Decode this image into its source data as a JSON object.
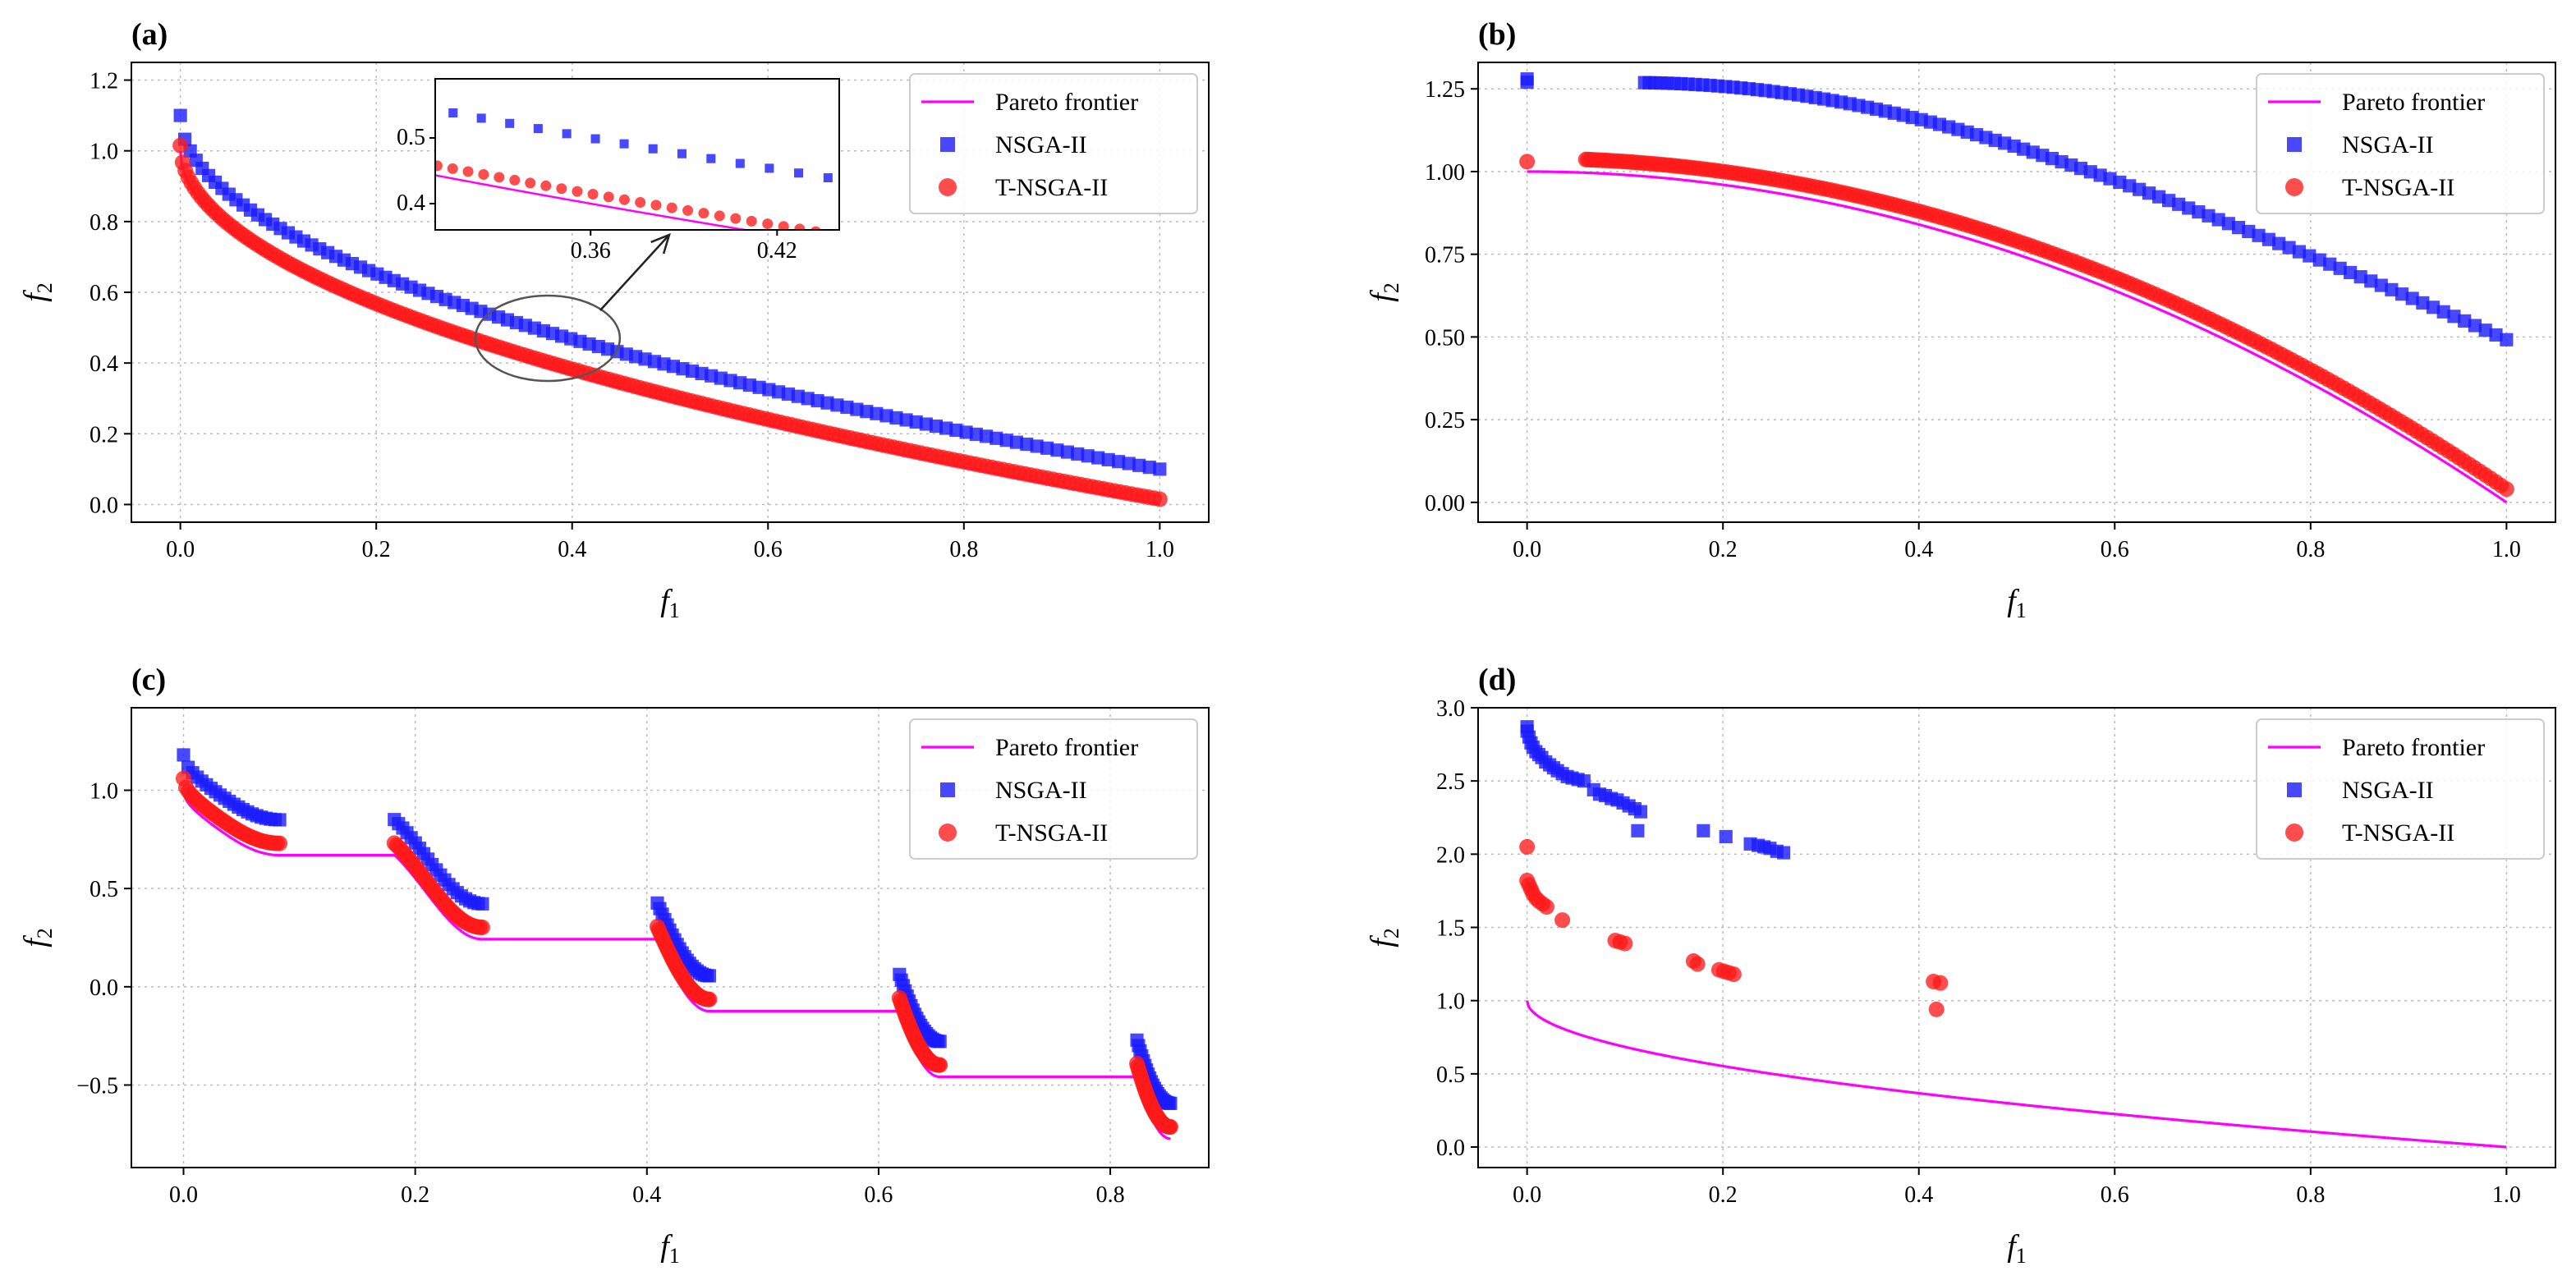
{
  "colors": {
    "pareto": "#ff00ff",
    "nsga": "#1a1aff",
    "tnsga": "#ff1a1a"
  },
  "chart_data": [
    {
      "type": "scatter",
      "panel_label": "(a)",
      "xlabel": "f",
      "xlabel_sub": "1",
      "ylabel": "f",
      "ylabel_sub": "2",
      "xlim": [
        -0.05,
        1.05
      ],
      "ylim": [
        -0.05,
        1.25
      ],
      "xticks": [
        0.0,
        0.2,
        0.4,
        0.6,
        0.8,
        1.0
      ],
      "xtick_labels": [
        "0.0",
        "0.2",
        "0.4",
        "0.6",
        "0.8",
        "1.0"
      ],
      "yticks": [
        0.0,
        0.2,
        0.4,
        0.6,
        0.8,
        1.0,
        1.2
      ],
      "ytick_labels": [
        "0.0",
        "0.2",
        "0.4",
        "0.6",
        "0.8",
        "1.0",
        "1.2"
      ],
      "grid": true,
      "legend": [
        "Pareto frontier",
        "NSGA-II",
        "T-NSGA-II"
      ],
      "legend_position": "top-right",
      "series": [
        {
          "name": "Pareto frontier",
          "kind": "line",
          "curve": "zdt1",
          "x_range": [
            0,
            1
          ],
          "offset": 0
        },
        {
          "name": "NSGA-II",
          "kind": "square",
          "curve": "zdt1",
          "x_range": [
            0,
            1
          ],
          "offset": 0.1,
          "n": 110
        },
        {
          "name": "T-NSGA-II",
          "kind": "circle",
          "curve": "zdt1",
          "x_range": [
            0,
            1
          ],
          "offset": 0.015,
          "n": 200
        }
      ],
      "inset": {
        "xlim": [
          0.31,
          0.44
        ],
        "ylim": [
          0.36,
          0.59
        ],
        "xticks": [
          0.36,
          0.42
        ],
        "xtick_labels": [
          "0.36",
          "0.42"
        ],
        "yticks": [
          0.4,
          0.5
        ],
        "ytick_labels": [
          "0.4",
          "0.5"
        ],
        "zoom_center": [
          0.375,
          0.47
        ]
      }
    },
    {
      "type": "scatter",
      "panel_label": "(b)",
      "xlabel": "f",
      "xlabel_sub": "1",
      "ylabel": "f",
      "ylabel_sub": "2",
      "xlim": [
        -0.05,
        1.05
      ],
      "ylim": [
        -0.06,
        1.33
      ],
      "xticks": [
        0.0,
        0.2,
        0.4,
        0.6,
        0.8,
        1.0
      ],
      "xtick_labels": [
        "0.0",
        "0.2",
        "0.4",
        "0.6",
        "0.8",
        "1.0"
      ],
      "yticks": [
        0.0,
        0.25,
        0.5,
        0.75,
        1.0,
        1.25
      ],
      "ytick_labels": [
        "0.00",
        "0.25",
        "0.50",
        "0.75",
        "1.00",
        "1.25"
      ],
      "grid": true,
      "legend": [
        "Pareto frontier",
        "NSGA-II",
        "T-NSGA-II"
      ],
      "legend_position": "top-right",
      "series": [
        {
          "name": "Pareto frontier",
          "kind": "line",
          "curve": "zdt2",
          "x_range": [
            0,
            1
          ],
          "offset": 0
        },
        {
          "name": "NSGA-II",
          "kind": "square",
          "curve": "nsga_b",
          "x_range": [
            0.12,
            1
          ],
          "n": 95,
          "extra": [
            [
              0,
              1.28
            ],
            [
              0,
              1.27
            ]
          ]
        },
        {
          "name": "T-NSGA-II",
          "kind": "circle",
          "curve": "zdt2",
          "x_range": [
            0.06,
            1
          ],
          "offset": 0.04,
          "n": 200,
          "extra": [
            [
              0,
              1.03
            ]
          ]
        }
      ]
    },
    {
      "type": "scatter",
      "panel_label": "(c)",
      "xlabel": "f",
      "xlabel_sub": "1",
      "ylabel": "f",
      "ylabel_sub": "2",
      "xlim": [
        -0.045,
        0.885
      ],
      "ylim": [
        -0.92,
        1.42
      ],
      "xticks": [
        0.0,
        0.2,
        0.4,
        0.6,
        0.8
      ],
      "xtick_labels": [
        "0.0",
        "0.2",
        "0.4",
        "0.6",
        "0.8"
      ],
      "yticks": [
        -0.5,
        0.0,
        0.5,
        1.0
      ],
      "ytick_labels": [
        "−0.5",
        "0.0",
        "0.5",
        "1.0"
      ],
      "grid": true,
      "legend": [
        "Pareto frontier",
        "NSGA-II",
        "T-NSGA-II"
      ],
      "legend_position": "top-right",
      "series": [
        {
          "name": "Pareto frontier",
          "kind": "line",
          "curve": "zdt3_front",
          "x_range": [
            0,
            0.852
          ],
          "offset": 0
        },
        {
          "name": "NSGA-II",
          "kind": "square",
          "curve": "zdt3_segments",
          "offset": 0.18,
          "n_per_segment": 22
        },
        {
          "name": "T-NSGA-II",
          "kind": "circle",
          "curve": "zdt3_segments",
          "offset": 0.06,
          "n_per_segment": 40
        }
      ],
      "segments": [
        [
          0.0,
          0.083
        ],
        [
          0.182,
          0.258
        ],
        [
          0.409,
          0.454
        ],
        [
          0.618,
          0.653
        ],
        [
          0.823,
          0.852
        ]
      ]
    },
    {
      "type": "scatter",
      "panel_label": "(d)",
      "xlabel": "f",
      "xlabel_sub": "1",
      "ylabel": "f",
      "ylabel_sub": "2",
      "xlim": [
        -0.05,
        1.05
      ],
      "ylim": [
        -0.14,
        3.0
      ],
      "xticks": [
        0.0,
        0.2,
        0.4,
        0.6,
        0.8,
        1.0
      ],
      "xtick_labels": [
        "0.0",
        "0.2",
        "0.4",
        "0.6",
        "0.8",
        "1.0"
      ],
      "yticks": [
        0.0,
        0.5,
        1.0,
        1.5,
        2.0,
        2.5,
        3.0
      ],
      "ytick_labels": [
        "0.0",
        "0.5",
        "1.0",
        "1.5",
        "2.0",
        "2.5",
        "3.0"
      ],
      "grid": true,
      "legend": [
        "Pareto frontier",
        "NSGA-II",
        "T-NSGA-II"
      ],
      "legend_position": "top-right",
      "series": [
        {
          "name": "Pareto frontier",
          "kind": "line",
          "curve": "zdt1",
          "x_range": [
            0,
            1
          ],
          "offset": 0
        },
        {
          "name": "NSGA-II",
          "kind": "square",
          "points": [
            [
              0.0,
              2.87
            ],
            [
              0.0,
              2.84
            ],
            [
              0.002,
              2.8
            ],
            [
              0.004,
              2.76
            ],
            [
              0.006,
              2.73
            ],
            [
              0.009,
              2.7
            ],
            [
              0.012,
              2.68
            ],
            [
              0.015,
              2.66
            ],
            [
              0.019,
              2.63
            ],
            [
              0.023,
              2.61
            ],
            [
              0.027,
              2.59
            ],
            [
              0.031,
              2.57
            ],
            [
              0.036,
              2.55
            ],
            [
              0.041,
              2.53
            ],
            [
              0.046,
              2.52
            ],
            [
              0.052,
              2.51
            ],
            [
              0.058,
              2.5
            ],
            [
              0.068,
              2.44
            ],
            [
              0.074,
              2.41
            ],
            [
              0.08,
              2.4
            ],
            [
              0.086,
              2.38
            ],
            [
              0.092,
              2.37
            ],
            [
              0.098,
              2.35
            ],
            [
              0.104,
              2.33
            ],
            [
              0.11,
              2.31
            ],
            [
              0.116,
              2.29
            ],
            [
              0.113,
              2.16
            ],
            [
              0.18,
              2.16
            ],
            [
              0.203,
              2.12
            ],
            [
              0.228,
              2.07
            ],
            [
              0.236,
              2.06
            ],
            [
              0.242,
              2.05
            ],
            [
              0.248,
              2.04
            ],
            [
              0.255,
              2.02
            ],
            [
              0.262,
              2.01
            ]
          ]
        },
        {
          "name": "T-NSGA-II",
          "kind": "circle",
          "points": [
            [
              0.0,
              2.05
            ],
            [
              0.0,
              1.82
            ],
            [
              0.002,
              1.79
            ],
            [
              0.004,
              1.76
            ],
            [
              0.006,
              1.73
            ],
            [
              0.009,
              1.7
            ],
            [
              0.012,
              1.68
            ],
            [
              0.016,
              1.66
            ],
            [
              0.02,
              1.64
            ],
            [
              0.036,
              1.55
            ],
            [
              0.09,
              1.41
            ],
            [
              0.095,
              1.4
            ],
            [
              0.1,
              1.39
            ],
            [
              0.17,
              1.27
            ],
            [
              0.174,
              1.25
            ],
            [
              0.196,
              1.21
            ],
            [
              0.201,
              1.2
            ],
            [
              0.206,
              1.19
            ],
            [
              0.211,
              1.18
            ],
            [
              0.415,
              1.13
            ],
            [
              0.422,
              1.12
            ],
            [
              0.418,
              0.94
            ]
          ]
        }
      ]
    }
  ]
}
